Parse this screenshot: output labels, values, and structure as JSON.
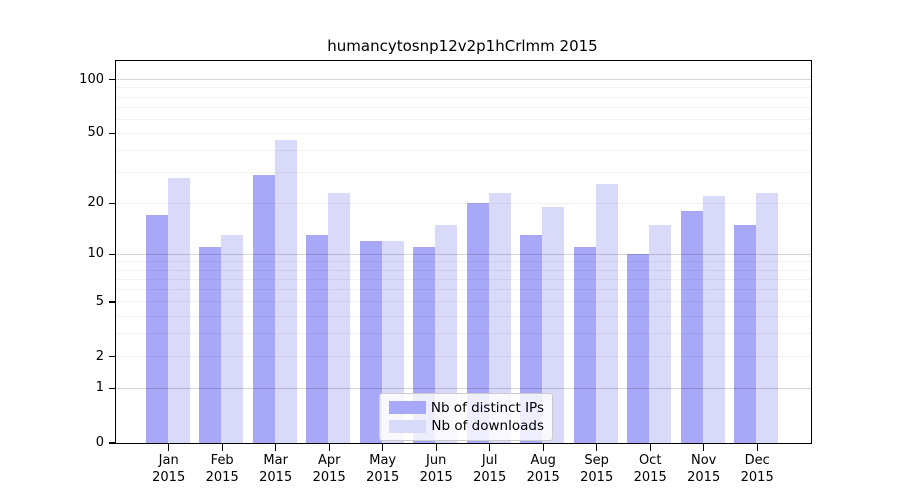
{
  "title": "humancytosnp12v2p1hCrlmm 2015",
  "chart_data": {
    "type": "bar",
    "title": "humancytosnp12v2p1hCrlmm 2015",
    "categories": [
      "Jan",
      "Feb",
      "Mar",
      "Apr",
      "May",
      "Jun",
      "Jul",
      "Aug",
      "Sep",
      "Oct",
      "Nov",
      "Dec"
    ],
    "x_tick_year": "2015",
    "series": [
      {
        "name": "Nb of distinct IPs",
        "color": "#a8a8f8",
        "values": [
          17,
          11,
          29,
          13,
          12,
          11,
          20,
          13,
          11,
          10,
          18,
          15
        ]
      },
      {
        "name": "Nb of downloads",
        "color": "#d9d9f9",
        "values": [
          28,
          13,
          46,
          23,
          12,
          15,
          23,
          19,
          26,
          15,
          22,
          23
        ]
      }
    ],
    "y_axis": {
      "scale": "log10(value+1)",
      "ticks": [
        0,
        1,
        2,
        5,
        10,
        20,
        50,
        100
      ],
      "major_gridlines": [
        1,
        10,
        100
      ],
      "minor_gridlines": [
        2,
        3,
        4,
        5,
        6,
        7,
        8,
        9,
        20,
        30,
        40,
        50,
        60,
        70,
        80,
        90
      ],
      "range": [
        0,
        100
      ]
    },
    "legend": {
      "position": "bottom-center"
    },
    "grid": true
  }
}
